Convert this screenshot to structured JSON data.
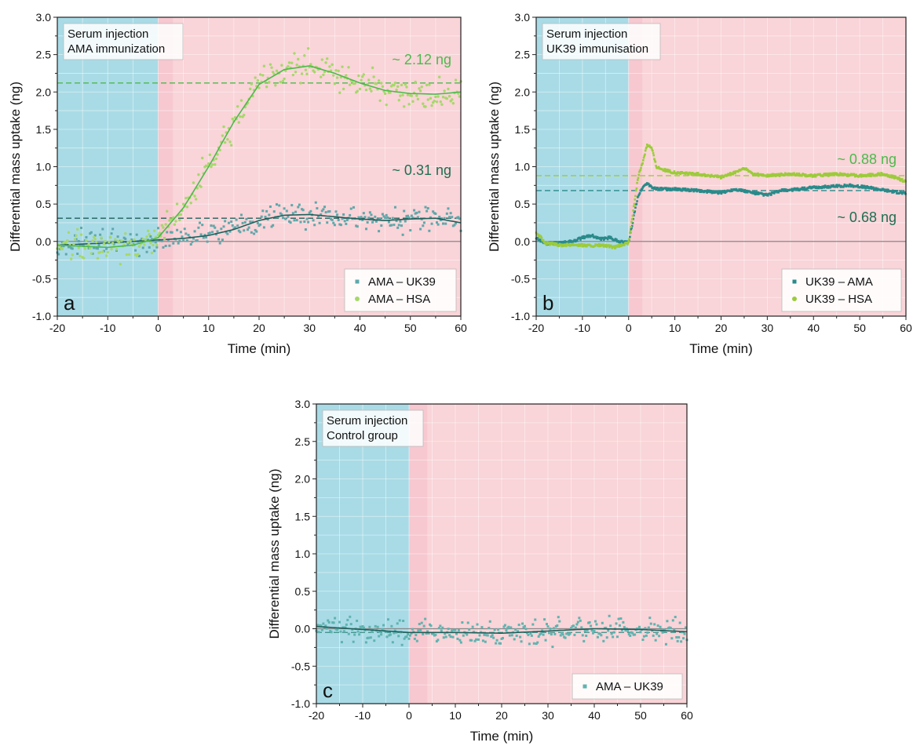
{
  "chart_data": [
    {
      "panel": "a",
      "type": "scatter",
      "xlabel": "Time (min)",
      "ylabel": "Differential mass uptake (ng)",
      "xlim": [
        -20,
        60
      ],
      "ylim": [
        -1.0,
        3.0
      ],
      "xticks": [
        "-20",
        "-10",
        "0",
        "10",
        "20",
        "30",
        "40",
        "50",
        "60"
      ],
      "yticks": [
        "-1.0",
        "-0.5",
        "0.0",
        "0.5",
        "1.0",
        "1.5",
        "2.0",
        "2.5",
        "3.0"
      ],
      "grid": true,
      "regions": [
        {
          "from": -20,
          "to": 0,
          "color": "#a9dbe6"
        },
        {
          "from": 0,
          "to": 3,
          "color": "#f7c8d0"
        },
        {
          "from": 3,
          "to": 60,
          "color": "#f9d4d8"
        }
      ],
      "info_lines": [
        "Serum injection",
        "AMA immunization"
      ],
      "legend_position": "bottom-right",
      "series": [
        {
          "name": "AMA – UK39",
          "color": "#5fa7ab",
          "marker": "square",
          "fit_color": "#1f5f5a",
          "plateau": 0.31,
          "plateau_label": "~ 0.31 ng",
          "label_color": "#1f6e52",
          "fit_points": [
            [
              -20,
              -0.05
            ],
            [
              -10,
              -0.02
            ],
            [
              0,
              0.02
            ],
            [
              5,
              0.04
            ],
            [
              10,
              0.08
            ],
            [
              15,
              0.16
            ],
            [
              20,
              0.28
            ],
            [
              25,
              0.35
            ],
            [
              30,
              0.36
            ],
            [
              35,
              0.33
            ],
            [
              40,
              0.3
            ],
            [
              45,
              0.28
            ],
            [
              50,
              0.3
            ],
            [
              55,
              0.31
            ],
            [
              60,
              0.25
            ]
          ],
          "scatter_spread": 0.12
        },
        {
          "name": "AMA – HSA",
          "color": "#a6d86a",
          "marker": "circle",
          "fit_color": "#4db94d",
          "plateau": 2.12,
          "plateau_label": "~ 2.12 ng",
          "label_color": "#4db94d",
          "fit_points": [
            [
              -20,
              -0.05
            ],
            [
              -10,
              -0.08
            ],
            [
              -5,
              -0.05
            ],
            [
              0,
              0.05
            ],
            [
              5,
              0.45
            ],
            [
              10,
              1.0
            ],
            [
              15,
              1.6
            ],
            [
              20,
              2.1
            ],
            [
              25,
              2.3
            ],
            [
              30,
              2.35
            ],
            [
              35,
              2.25
            ],
            [
              40,
              2.12
            ],
            [
              45,
              2.02
            ],
            [
              50,
              1.98
            ],
            [
              55,
              1.97
            ],
            [
              60,
              2.0
            ]
          ],
          "scatter_spread": 0.16
        }
      ]
    },
    {
      "panel": "b",
      "type": "line",
      "xlabel": "Time (min)",
      "ylabel": "Differential mass uptake (ng)",
      "xlim": [
        -20,
        60
      ],
      "ylim": [
        -1.0,
        3.0
      ],
      "xticks": [
        "-20",
        "-10",
        "0",
        "10",
        "20",
        "30",
        "40",
        "50",
        "60"
      ],
      "yticks": [
        "-1.0",
        "-0.5",
        "0.0",
        "0.5",
        "1.0",
        "1.5",
        "2.0",
        "2.5",
        "3.0"
      ],
      "grid": true,
      "regions": [
        {
          "from": -20,
          "to": 0,
          "color": "#a9dbe6"
        },
        {
          "from": 0,
          "to": 3,
          "color": "#f7c8d0"
        },
        {
          "from": 3,
          "to": 60,
          "color": "#f9d4d8"
        }
      ],
      "info_lines": [
        "Serum injection",
        "UK39 immunisation"
      ],
      "legend_position": "bottom-right",
      "series": [
        {
          "name": "UK39 – AMA",
          "color": "#2a8a8a",
          "marker": "square",
          "plateau": 0.68,
          "plateau_label": "~ 0.68 ng",
          "label_color": "#1f6e52",
          "points": [
            [
              -20,
              0.05
            ],
            [
              -18,
              -0.03
            ],
            [
              -15,
              -0.02
            ],
            [
              -12,
              0.0
            ],
            [
              -10,
              0.05
            ],
            [
              -8,
              0.08
            ],
            [
              -6,
              0.03
            ],
            [
              -4,
              0.05
            ],
            [
              -2,
              0.0
            ],
            [
              0,
              -0.02
            ],
            [
              1,
              0.3
            ],
            [
              2,
              0.6
            ],
            [
              3,
              0.72
            ],
            [
              4,
              0.78
            ],
            [
              5,
              0.72
            ],
            [
              7,
              0.7
            ],
            [
              10,
              0.7
            ],
            [
              15,
              0.68
            ],
            [
              20,
              0.65
            ],
            [
              23,
              0.7
            ],
            [
              27,
              0.65
            ],
            [
              30,
              0.62
            ],
            [
              33,
              0.68
            ],
            [
              37,
              0.7
            ],
            [
              40,
              0.72
            ],
            [
              45,
              0.74
            ],
            [
              48,
              0.75
            ],
            [
              52,
              0.72
            ],
            [
              56,
              0.68
            ],
            [
              60,
              0.64
            ]
          ]
        },
        {
          "name": "UK39 – HSA",
          "color": "#9ccb3b",
          "marker": "circle",
          "plateau": 0.88,
          "plateau_label": "~ 0.88 ng",
          "label_color": "#4db94d",
          "points": [
            [
              -20,
              0.12
            ],
            [
              -18,
              -0.02
            ],
            [
              -15,
              -0.05
            ],
            [
              -12,
              -0.04
            ],
            [
              -8,
              -0.06
            ],
            [
              -6,
              -0.05
            ],
            [
              -3,
              -0.08
            ],
            [
              0,
              -0.02
            ],
            [
              1,
              0.4
            ],
            [
              2,
              0.85
            ],
            [
              3,
              1.05
            ],
            [
              4,
              1.3
            ],
            [
              5,
              1.25
            ],
            [
              6,
              1.0
            ],
            [
              8,
              0.95
            ],
            [
              10,
              0.92
            ],
            [
              15,
              0.9
            ],
            [
              20,
              0.86
            ],
            [
              23,
              0.92
            ],
            [
              25,
              0.98
            ],
            [
              27,
              0.9
            ],
            [
              30,
              0.88
            ],
            [
              35,
              0.9
            ],
            [
              40,
              0.88
            ],
            [
              45,
              0.9
            ],
            [
              50,
              0.88
            ],
            [
              55,
              0.9
            ],
            [
              58,
              0.85
            ],
            [
              60,
              0.8
            ]
          ]
        }
      ]
    },
    {
      "panel": "c",
      "type": "scatter",
      "xlabel": "Time (min)",
      "ylabel": "Differential mass uptake (ng)",
      "xlim": [
        -20,
        60
      ],
      "ylim": [
        -1.0,
        3.0
      ],
      "xticks": [
        "-20",
        "-10",
        "0",
        "10",
        "20",
        "30",
        "40",
        "50",
        "60"
      ],
      "yticks": [
        "-1.0",
        "-0.5",
        "0.0",
        "0.5",
        "1.0",
        "1.5",
        "2.0",
        "2.5",
        "3.0"
      ],
      "grid": true,
      "regions": [
        {
          "from": -20,
          "to": 0,
          "color": "#a9dbe6"
        },
        {
          "from": 0,
          "to": 4,
          "color": "#f7c8d0"
        },
        {
          "from": 4,
          "to": 60,
          "color": "#f9d4d8"
        }
      ],
      "info_lines": [
        "Serum injection",
        "Control group"
      ],
      "legend_position": "bottom-right",
      "series": [
        {
          "name": "AMA – UK39",
          "color": "#5fb3b0",
          "marker": "square",
          "fit_color": "#1f5f5a",
          "plateau": -0.05,
          "fit_points": [
            [
              -20,
              0.03
            ],
            [
              -10,
              -0.01
            ],
            [
              0,
              -0.05
            ],
            [
              10,
              -0.05
            ],
            [
              20,
              -0.06
            ],
            [
              30,
              -0.03
            ],
            [
              40,
              0.0
            ],
            [
              50,
              -0.01
            ],
            [
              60,
              -0.04
            ]
          ],
          "scatter_spread": 0.12
        }
      ]
    }
  ]
}
